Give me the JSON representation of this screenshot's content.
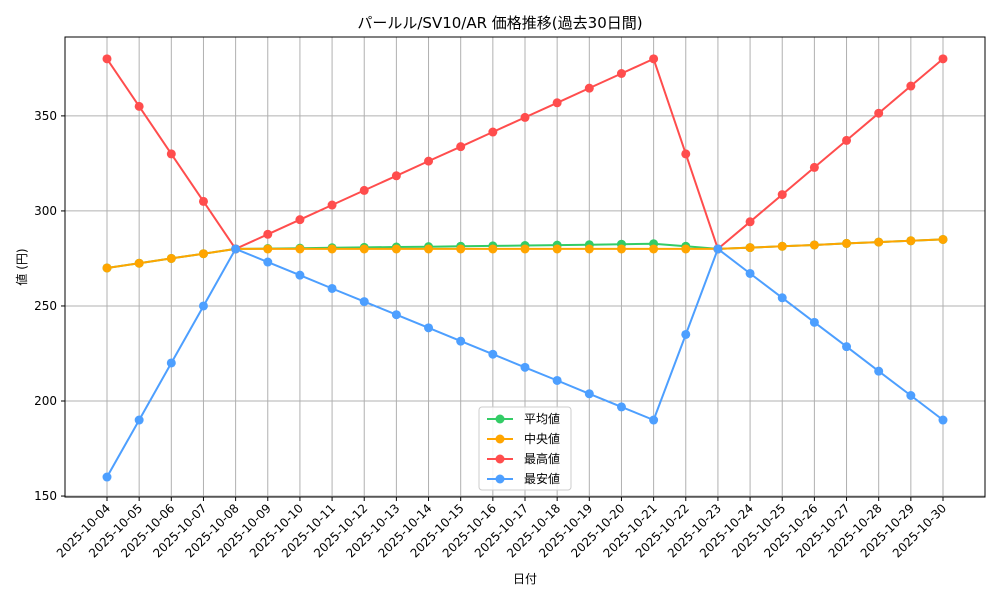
{
  "chart_data": {
    "type": "line",
    "title": "パールル/SV10/AR 価格推移(過去30日間)",
    "xlabel": "日付",
    "ylabel": "値 (円)",
    "ylim": [
      149.5,
      391.5
    ],
    "yticks": [
      150,
      200,
      250,
      300,
      350
    ],
    "grid": true,
    "legend_position": "lower center",
    "categories": [
      "2025-10-04",
      "2025-10-05",
      "2025-10-06",
      "2025-10-07",
      "2025-10-08",
      "2025-10-09",
      "2025-10-10",
      "2025-10-11",
      "2025-10-12",
      "2025-10-13",
      "2025-10-14",
      "2025-10-15",
      "2025-10-16",
      "2025-10-17",
      "2025-10-18",
      "2025-10-19",
      "2025-10-20",
      "2025-10-21",
      "2025-10-22",
      "2025-10-23",
      "2025-10-24",
      "2025-10-25",
      "2025-10-26",
      "2025-10-27",
      "2025-10-28",
      "2025-10-29",
      "2025-10-30"
    ],
    "series": [
      {
        "name": "平均値",
        "color": "#33cc66",
        "values": [
          270,
          272.5,
          275,
          277.5,
          280,
          280.2,
          280.4,
          280.6,
          280.8,
          281,
          281.2,
          281.4,
          281.6,
          281.8,
          282,
          282.2,
          282.5,
          282.7,
          281.4,
          280,
          280.7,
          281.4,
          282.1,
          282.9,
          283.6,
          284.3,
          285
        ]
      },
      {
        "name": "中央値",
        "color": "#ffa500",
        "values": [
          270,
          272.5,
          275,
          277.5,
          280,
          280,
          280,
          280,
          280,
          280,
          280,
          280,
          280,
          280,
          280,
          280,
          280,
          280,
          280,
          280,
          280.7,
          281.4,
          282.1,
          282.9,
          283.6,
          284.3,
          285
        ]
      },
      {
        "name": "最高値",
        "color": "#ff4d4d",
        "values": [
          380,
          355,
          330,
          305,
          280,
          287.7,
          295.4,
          303.1,
          310.8,
          318.5,
          326.2,
          333.8,
          341.5,
          349.2,
          356.9,
          364.6,
          372.3,
          380,
          330,
          280,
          294.3,
          308.6,
          322.9,
          337.1,
          351.4,
          365.7,
          380
        ]
      },
      {
        "name": "最安値",
        "color": "#4d9fff",
        "values": [
          160,
          190,
          220,
          250,
          280,
          273.1,
          266.2,
          259.2,
          252.3,
          245.4,
          238.5,
          231.5,
          224.6,
          217.7,
          210.8,
          203.8,
          196.9,
          190,
          235,
          280,
          267.1,
          254.3,
          241.4,
          228.6,
          215.7,
          202.9,
          190
        ]
      }
    ]
  }
}
